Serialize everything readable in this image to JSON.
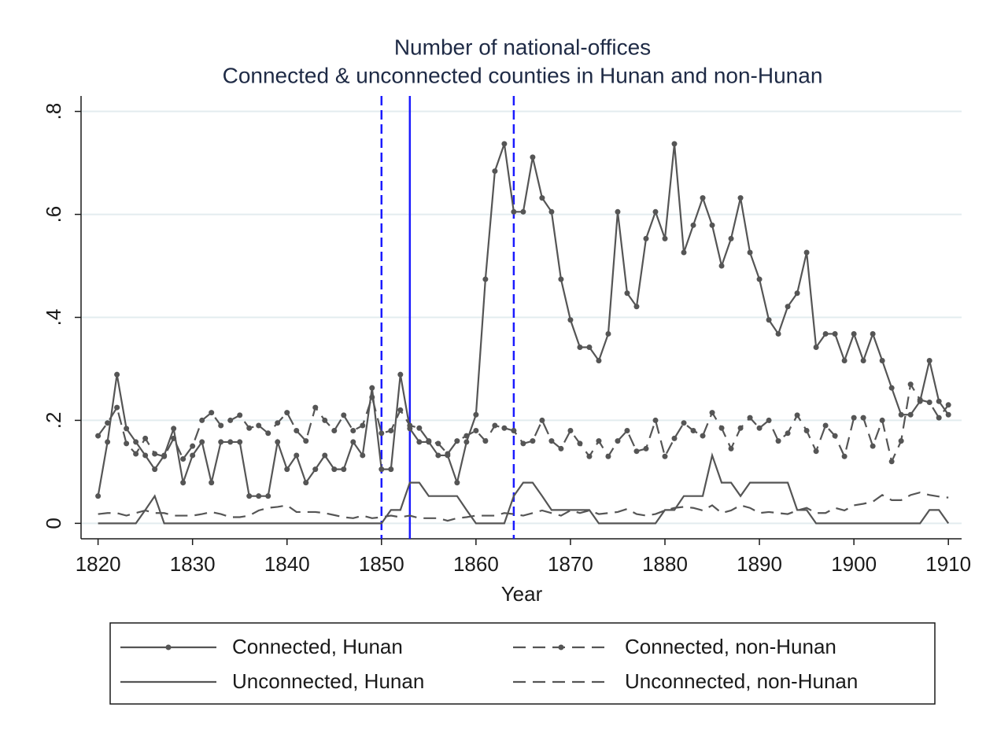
{
  "chart_data": {
    "type": "line",
    "title": "Number of national-offices",
    "subtitle": "Connected & unconnected counties in Hunan and non-Hunan",
    "x_label": "Year",
    "x": [
      1820,
      1821,
      1822,
      1823,
      1824,
      1825,
      1826,
      1827,
      1828,
      1829,
      1830,
      1831,
      1832,
      1833,
      1834,
      1835,
      1836,
      1837,
      1838,
      1839,
      1840,
      1841,
      1842,
      1843,
      1844,
      1845,
      1846,
      1847,
      1848,
      1849,
      1850,
      1851,
      1852,
      1853,
      1854,
      1855,
      1856,
      1857,
      1858,
      1859,
      1860,
      1861,
      1862,
      1863,
      1864,
      1865,
      1866,
      1867,
      1868,
      1869,
      1870,
      1871,
      1872,
      1873,
      1874,
      1875,
      1876,
      1877,
      1878,
      1879,
      1880,
      1881,
      1882,
      1883,
      1884,
      1885,
      1886,
      1887,
      1888,
      1889,
      1890,
      1891,
      1892,
      1893,
      1894,
      1895,
      1896,
      1897,
      1898,
      1899,
      1900,
      1901,
      1902,
      1903,
      1904,
      1905,
      1906,
      1907,
      1908,
      1909,
      1910
    ],
    "xlim": [
      1818.2,
      1911.4
    ],
    "xticks": [
      1820,
      1830,
      1840,
      1850,
      1860,
      1870,
      1880,
      1890,
      1900,
      1910
    ],
    "ylim": [
      -0.03,
      0.83
    ],
    "yticks": [
      0,
      {
        "value": 0.2,
        "label": ".2"
      },
      {
        "value": 0.4,
        "label": ".4"
      },
      {
        "value": 0.6,
        "label": ".6"
      },
      {
        "value": 0.8,
        "label": ".8"
      }
    ],
    "grid": true,
    "vlines": [
      {
        "x": 1850,
        "style": "dashed",
        "color": "#1a1aff"
      },
      {
        "x": 1853,
        "style": "solid",
        "color": "#1a1aff"
      },
      {
        "x": 1864,
        "style": "dashed",
        "color": "#1a1aff"
      }
    ],
    "series": [
      {
        "name": "Connected, Hunan",
        "color": "#555555",
        "style": "solid",
        "markers": true,
        "values": [
          0.053,
          0.158,
          0.289,
          0.184,
          0.158,
          0.132,
          0.105,
          0.132,
          0.184,
          0.079,
          0.132,
          0.158,
          0.079,
          0.158,
          0.158,
          0.158,
          0.053,
          0.053,
          0.053,
          0.158,
          0.105,
          0.132,
          0.079,
          0.105,
          0.132,
          0.105,
          0.105,
          0.158,
          0.132,
          0.263,
          0.105,
          0.105,
          0.289,
          0.184,
          0.158,
          0.158,
          0.132,
          0.132,
          0.079,
          0.158,
          0.211,
          0.474,
          0.684,
          0.737,
          0.605,
          0.605,
          0.711,
          0.632,
          0.605,
          0.474,
          0.395,
          0.342,
          0.342,
          0.316,
          0.368,
          0.605,
          0.447,
          0.421,
          0.553,
          0.605,
          0.553,
          0.737,
          0.526,
          0.579,
          0.632,
          0.579,
          0.5,
          0.553,
          0.632,
          0.526,
          0.474,
          0.395,
          0.368,
          0.421,
          0.447,
          0.526,
          0.342,
          0.368,
          0.368,
          0.316,
          0.368,
          0.316,
          0.368,
          0.316,
          0.263,
          0.211,
          0.211,
          0.237,
          0.316,
          0.237,
          0.211
        ]
      },
      {
        "name": "Connected, non-Hunan",
        "color": "#555555",
        "style": "dashed",
        "markers": true,
        "values": [
          0.17,
          0.195,
          0.225,
          0.155,
          0.135,
          0.165,
          0.135,
          0.13,
          0.165,
          0.125,
          0.15,
          0.2,
          0.215,
          0.19,
          0.2,
          0.21,
          0.185,
          0.19,
          0.175,
          0.195,
          0.215,
          0.18,
          0.16,
          0.225,
          0.2,
          0.18,
          0.21,
          0.18,
          0.19,
          0.245,
          0.175,
          0.18,
          0.22,
          0.19,
          0.185,
          0.16,
          0.155,
          0.135,
          0.16,
          0.17,
          0.18,
          0.16,
          0.19,
          0.185,
          0.18,
          0.155,
          0.16,
          0.2,
          0.16,
          0.145,
          0.18,
          0.155,
          0.13,
          0.16,
          0.13,
          0.16,
          0.18,
          0.14,
          0.145,
          0.2,
          0.13,
          0.165,
          0.195,
          0.18,
          0.17,
          0.215,
          0.185,
          0.145,
          0.185,
          0.205,
          0.185,
          0.2,
          0.16,
          0.175,
          0.21,
          0.18,
          0.14,
          0.19,
          0.17,
          0.13,
          0.205,
          0.205,
          0.15,
          0.2,
          0.12,
          0.16,
          0.27,
          0.24,
          0.235,
          0.205,
          0.23
        ]
      },
      {
        "name": "Unconnected, Hunan",
        "color": "#555555",
        "style": "solid",
        "markers": false,
        "values": [
          0,
          0,
          0,
          0,
          0,
          0.026,
          0.053,
          0,
          0,
          0,
          0,
          0,
          0,
          0,
          0,
          0,
          0,
          0,
          0,
          0,
          0,
          0,
          0,
          0,
          0,
          0,
          0,
          0,
          0,
          0,
          0,
          0.026,
          0.026,
          0.079,
          0.079,
          0.053,
          0.053,
          0.053,
          0.053,
          0.026,
          0,
          0,
          0,
          0,
          0.053,
          0.079,
          0.079,
          0.053,
          0.026,
          0.026,
          0.026,
          0.026,
          0.026,
          0,
          0,
          0,
          0,
          0,
          0,
          0,
          0.026,
          0.026,
          0.053,
          0.053,
          0.053,
          0.132,
          0.079,
          0.079,
          0.053,
          0.079,
          0.079,
          0.079,
          0.079,
          0.079,
          0.026,
          0.026,
          0,
          0,
          0,
          0,
          0,
          0,
          0,
          0,
          0,
          0,
          0,
          0,
          0.026,
          0.026,
          0
        ]
      },
      {
        "name": "Unconnected, non-Hunan",
        "color": "#555555",
        "style": "dashed",
        "markers": false,
        "values": [
          0.018,
          0.02,
          0.02,
          0.015,
          0.02,
          0.025,
          0.02,
          0.02,
          0.015,
          0.015,
          0.015,
          0.018,
          0.022,
          0.018,
          0.012,
          0.012,
          0.015,
          0.025,
          0.03,
          0.032,
          0.035,
          0.022,
          0.022,
          0.022,
          0.02,
          0.016,
          0.012,
          0.01,
          0.015,
          0.01,
          0.012,
          0.015,
          0.012,
          0.015,
          0.01,
          0.01,
          0.01,
          0.005,
          0.01,
          0.012,
          0.015,
          0.015,
          0.015,
          0.02,
          0.018,
          0.015,
          0.02,
          0.025,
          0.02,
          0.015,
          0.025,
          0.02,
          0.025,
          0.018,
          0.02,
          0.022,
          0.028,
          0.018,
          0.015,
          0.018,
          0.025,
          0.03,
          0.032,
          0.03,
          0.025,
          0.035,
          0.02,
          0.025,
          0.035,
          0.03,
          0.02,
          0.022,
          0.02,
          0.018,
          0.025,
          0.03,
          0.02,
          0.02,
          0.03,
          0.025,
          0.035,
          0.038,
          0.042,
          0.055,
          0.045,
          0.045,
          0.055,
          0.06,
          0.055,
          0.052,
          0.05
        ]
      }
    ]
  }
}
